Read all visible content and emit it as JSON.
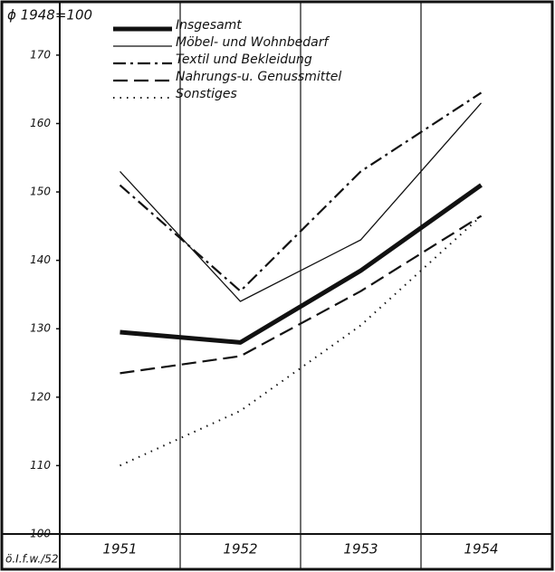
{
  "chart_data": {
    "type": "line",
    "title": "ϕ 1948=100",
    "source": "ö.I.f.w./52",
    "categories": [
      "1951",
      "1952",
      "1953",
      "1954"
    ],
    "series": [
      {
        "name": "Insgesamt",
        "color": "#111111",
        "width": 5,
        "dash": "none",
        "values": [
          129.5,
          128,
          138.5,
          151
        ]
      },
      {
        "name": "Möbel- und Wohnbedarf",
        "color": "#111111",
        "width": 1.3,
        "dash": "none",
        "values": [
          153,
          134,
          143,
          163
        ]
      },
      {
        "name": "Textil und Bekleidung",
        "color": "#111111",
        "width": 2.2,
        "dash": "14 5 3 5",
        "values": [
          151,
          135.5,
          153,
          164.5
        ]
      },
      {
        "name": "Nahrungs-u. Genussmittel",
        "color": "#111111",
        "width": 2.2,
        "dash": "16 7",
        "values": [
          123.5,
          126,
          135.5,
          146.5
        ]
      },
      {
        "name": "Sonstiges",
        "color": "#111111",
        "width": 2,
        "dash": "1.5 6",
        "values": [
          110,
          118,
          130.5,
          146.5
        ]
      }
    ],
    "ylim": [
      100,
      177
    ],
    "yticks": [
      100,
      110,
      120,
      130,
      140,
      150,
      160,
      170
    ]
  }
}
